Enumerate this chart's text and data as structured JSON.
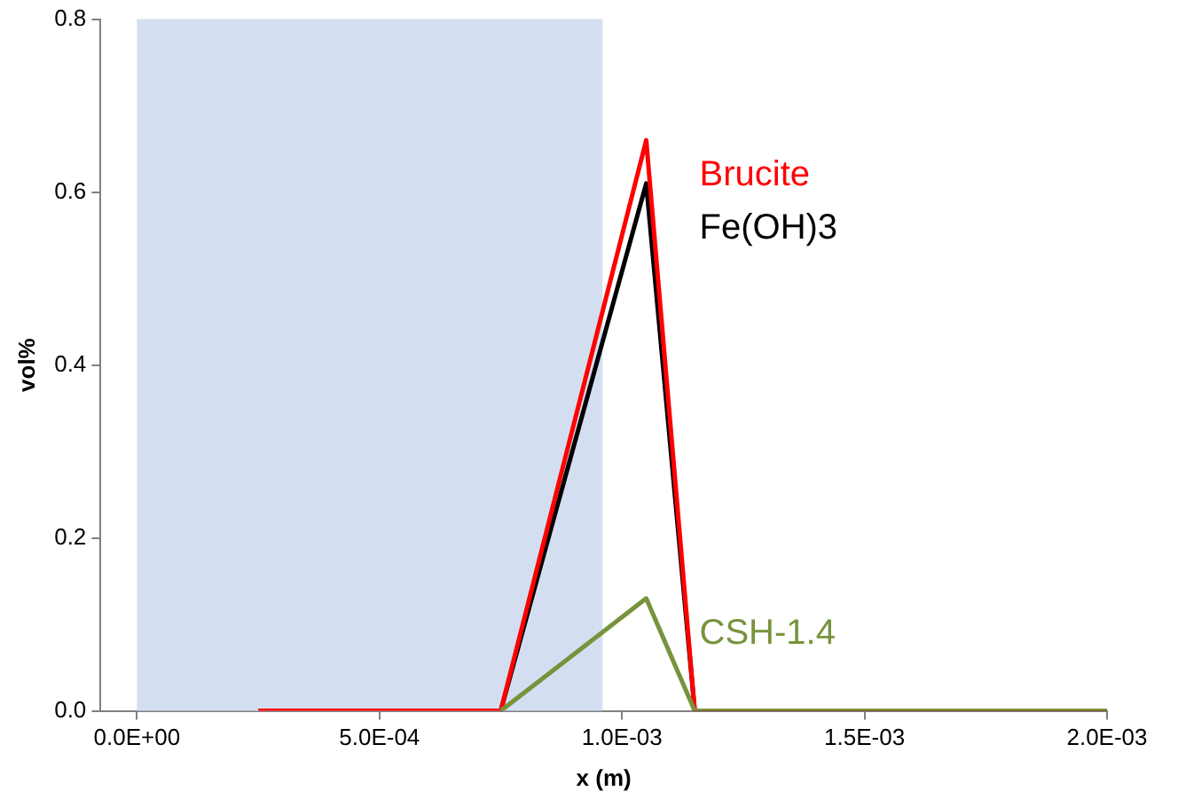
{
  "chart_data": {
    "type": "line",
    "xlabel": "x (m)",
    "ylabel": "vol%",
    "xlim": [
      -7.5e-05,
      0.002
    ],
    "xticks": [
      {
        "value": 0,
        "label": "0.0E+00"
      },
      {
        "value": 0.0005,
        "label": "5.0E-04"
      },
      {
        "value": 0.001,
        "label": "1.0E-03"
      },
      {
        "value": 0.0015,
        "label": "1.5E-03"
      },
      {
        "value": 0.002,
        "label": "2.0E-03"
      }
    ],
    "ylim": [
      0,
      0.8
    ],
    "yticks": [
      {
        "value": 0,
        "label": "0.0"
      },
      {
        "value": 0.2,
        "label": "0.2"
      },
      {
        "value": 0.4,
        "label": "0.4"
      },
      {
        "value": 0.6,
        "label": "0.6"
      },
      {
        "value": 0.8,
        "label": "0.8"
      }
    ],
    "bands": [
      {
        "axis": "x",
        "from": 0,
        "to": 0.00096,
        "color": "#d3dff0"
      }
    ],
    "grid": false,
    "legend": false,
    "marker": "none",
    "line_style": "solid",
    "series": [
      {
        "name": "CSH-1.4",
        "color": "#77933c",
        "x": [
          0.00075,
          0.00105,
          0.00115,
          0.002
        ],
        "values": [
          0,
          0.13,
          0,
          0
        ]
      },
      {
        "name": "Brucite",
        "color": "#ff0000",
        "x": [
          0.00025,
          0.00075,
          0.00105,
          0.00115,
          0.002
        ],
        "values": [
          0,
          0,
          0.66,
          0,
          0
        ]
      },
      {
        "name": "Fe(OH)3",
        "color": "#000000",
        "x": [
          0.00075,
          0.00105,
          0.00115,
          0.002
        ],
        "values": [
          0,
          0.61,
          0,
          0
        ]
      }
    ]
  }
}
